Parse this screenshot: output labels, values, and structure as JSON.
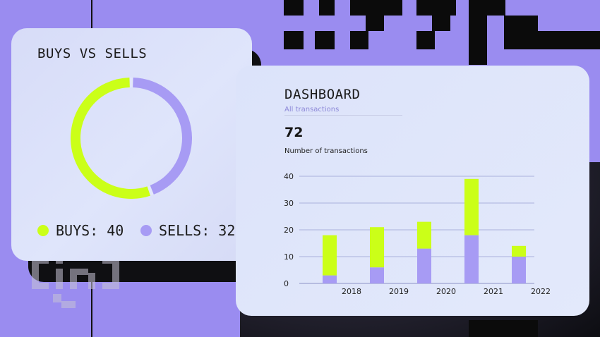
{
  "donut": {
    "title": "BUYS VS SELLS",
    "slices": [
      {
        "label": "BUYS: 40",
        "value": 40,
        "color": "#cbff18"
      },
      {
        "label": "SELLS: 32",
        "value": 32,
        "color": "#a79bf4"
      }
    ]
  },
  "dashboard": {
    "title": "DASHBOARD",
    "tab": "All transactions",
    "total": "72",
    "total_label": "Number of transactions"
  },
  "chart_data": [
    {
      "type": "pie",
      "title": "BUYS VS SELLS",
      "categories": [
        "BUYS",
        "SELLS"
      ],
      "values": [
        40,
        32
      ],
      "legend": "bottom"
    },
    {
      "type": "bar",
      "stacked": true,
      "categories": [
        "2018",
        "2019",
        "2020",
        "2021",
        "2022"
      ],
      "series": [
        {
          "values": [
            3,
            6,
            13,
            18,
            10
          ],
          "color": "#a79bf4"
        },
        {
          "values": [
            15,
            15,
            10,
            21,
            4
          ],
          "color": "#cbff18"
        }
      ],
      "yticks": [
        0,
        10,
        20,
        30,
        40
      ],
      "ylim": [
        0,
        40
      ],
      "grid": true
    }
  ]
}
